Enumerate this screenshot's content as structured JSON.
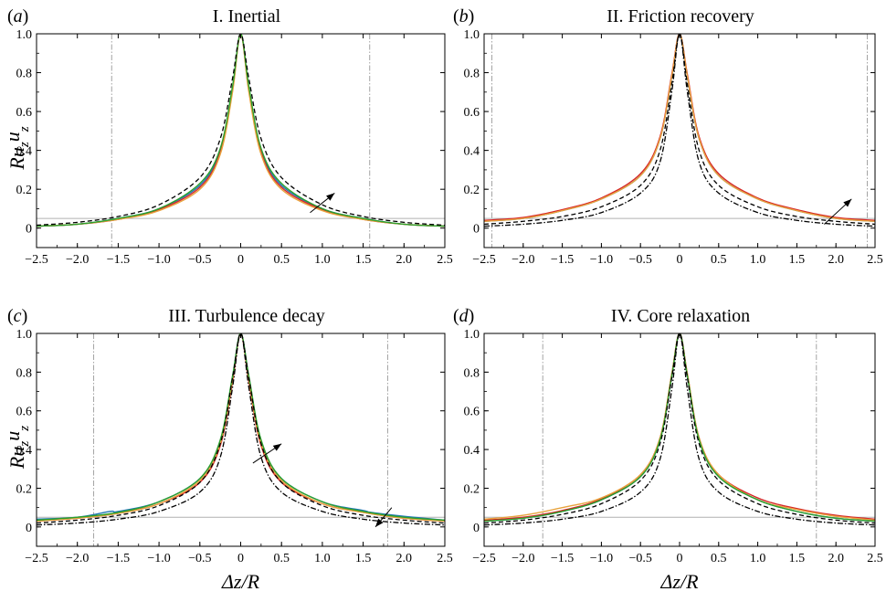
{
  "chart_data": [
    {
      "type": "line",
      "panel_label": "(a)",
      "title": "I. Inertial",
      "xlabel": "",
      "ylabel": "Ru_z u_z",
      "xlim": [
        -2.5,
        2.5
      ],
      "ylim": [
        -0.1,
        1.0
      ],
      "x_ticks": [
        "−2.5",
        "−2.0",
        "−1.5",
        "−1.0",
        "−0.5",
        "0",
        "0.5",
        "1.0",
        "1.5",
        "2.0",
        "2.5"
      ],
      "y_ticks": [
        "0",
        "0.2",
        "0.4",
        "0.6",
        "0.8",
        "1.0"
      ],
      "reference_hline": 0.05,
      "vlines": [
        -1.58,
        1.58
      ],
      "arrows": [
        {
          "from": [
            0.85,
            0.08
          ],
          "to": [
            1.15,
            0.18
          ]
        }
      ],
      "series": [
        {
          "color": "#1f77b4",
          "style": "solid",
          "x": [
            -2.5,
            -2.0,
            -1.5,
            -1.0,
            -0.5,
            -0.25,
            -0.1,
            0,
            0.1,
            0.25,
            0.5,
            1.0,
            1.5,
            2.0,
            2.5
          ],
          "y": [
            0.01,
            0.02,
            0.05,
            0.1,
            0.22,
            0.4,
            0.72,
            1.0,
            0.72,
            0.4,
            0.22,
            0.1,
            0.05,
            0.02,
            0.01
          ]
        },
        {
          "color": "#d62728",
          "style": "solid",
          "x": [
            -2.5,
            -2.0,
            -1.5,
            -1.0,
            -0.5,
            -0.25,
            -0.1,
            0,
            0.1,
            0.25,
            0.5,
            1.0,
            1.5,
            2.0,
            2.5
          ],
          "y": [
            0.01,
            0.02,
            0.045,
            0.095,
            0.21,
            0.39,
            0.71,
            1.0,
            0.71,
            0.39,
            0.21,
            0.095,
            0.045,
            0.02,
            0.01
          ]
        },
        {
          "color": "#e8a33d",
          "style": "solid",
          "x": [
            -2.5,
            -2.0,
            -1.5,
            -1.0,
            -0.5,
            -0.25,
            -0.1,
            0,
            0.1,
            0.25,
            0.5,
            1.0,
            1.5,
            2.0,
            2.5
          ],
          "y": [
            0.01,
            0.02,
            0.045,
            0.09,
            0.2,
            0.38,
            0.7,
            1.0,
            0.7,
            0.38,
            0.2,
            0.09,
            0.045,
            0.02,
            0.01
          ]
        },
        {
          "color": "#2ca02c",
          "style": "solid",
          "x": [
            -2.5,
            -2.0,
            -1.5,
            -1.0,
            -0.5,
            -0.25,
            -0.1,
            0,
            0.1,
            0.25,
            0.5,
            1.0,
            1.5,
            2.0,
            2.5
          ],
          "y": [
            0.01,
            0.02,
            0.05,
            0.1,
            0.23,
            0.41,
            0.73,
            1.0,
            0.73,
            0.41,
            0.23,
            0.1,
            0.05,
            0.02,
            0.01
          ]
        },
        {
          "color": "#000000",
          "style": "dashed",
          "x": [
            -2.5,
            -2.0,
            -1.5,
            -1.0,
            -0.5,
            -0.25,
            -0.1,
            0,
            0.1,
            0.25,
            0.5,
            1.0,
            1.5,
            2.0,
            2.5
          ],
          "y": [
            0.015,
            0.03,
            0.06,
            0.12,
            0.26,
            0.46,
            0.77,
            1.0,
            0.77,
            0.46,
            0.26,
            0.12,
            0.06,
            0.03,
            0.015
          ]
        }
      ]
    },
    {
      "type": "line",
      "panel_label": "(b)",
      "title": "II. Friction recovery",
      "xlabel": "",
      "ylabel": "",
      "xlim": [
        -2.5,
        2.5
      ],
      "ylim": [
        -0.1,
        1.0
      ],
      "x_ticks": [
        "−2.5",
        "−2.0",
        "−1.5",
        "−1.0",
        "−0.5",
        "0",
        "0.5",
        "1.0",
        "1.5",
        "2.0",
        "2.5"
      ],
      "y_ticks": [
        "0",
        "0.2",
        "0.4",
        "0.6",
        "0.8",
        "1.0"
      ],
      "reference_hline": 0.05,
      "vlines": [
        -2.4,
        2.4
      ],
      "arrows": [
        {
          "from": [
            1.85,
            0.02
          ],
          "to": [
            2.2,
            0.15
          ]
        }
      ],
      "series": [
        {
          "color": "#1f77b4",
          "style": "solid",
          "x": [
            -2.5,
            -2.0,
            -1.5,
            -1.0,
            -0.5,
            -0.25,
            -0.1,
            0,
            0.1,
            0.25,
            0.5,
            1.0,
            1.5,
            2.0,
            2.5
          ],
          "y": [
            0.035,
            0.05,
            0.09,
            0.15,
            0.27,
            0.46,
            0.78,
            1.0,
            0.78,
            0.46,
            0.27,
            0.15,
            0.09,
            0.05,
            0.035
          ]
        },
        {
          "color": "#d62728",
          "style": "solid",
          "x": [
            -2.5,
            -2.0,
            -1.5,
            -1.0,
            -0.5,
            -0.25,
            -0.1,
            0,
            0.1,
            0.25,
            0.5,
            1.0,
            1.5,
            2.0,
            2.5
          ],
          "y": [
            0.04,
            0.055,
            0.095,
            0.155,
            0.28,
            0.47,
            0.79,
            1.0,
            0.79,
            0.47,
            0.28,
            0.155,
            0.095,
            0.055,
            0.04
          ]
        },
        {
          "color": "#e8a33d",
          "style": "solid",
          "x": [
            -2.5,
            -2.0,
            -1.5,
            -1.0,
            -0.5,
            -0.25,
            -0.1,
            0,
            0.1,
            0.25,
            0.5,
            1.0,
            1.5,
            2.0,
            2.5
          ],
          "y": [
            0.035,
            0.05,
            0.09,
            0.15,
            0.27,
            0.46,
            0.78,
            1.0,
            0.78,
            0.46,
            0.27,
            0.15,
            0.09,
            0.05,
            0.035
          ]
        },
        {
          "color": "#000000",
          "style": "dashed",
          "x": [
            -2.5,
            -2.0,
            -1.5,
            -1.0,
            -0.5,
            -0.25,
            -0.1,
            0,
            0.1,
            0.25,
            0.5,
            1.0,
            1.5,
            2.0,
            2.5
          ],
          "y": [
            0.02,
            0.035,
            0.06,
            0.11,
            0.22,
            0.4,
            0.74,
            1.0,
            0.74,
            0.4,
            0.22,
            0.11,
            0.06,
            0.035,
            0.02
          ]
        },
        {
          "color": "#000000",
          "style": "dashdot",
          "x": [
            -2.5,
            -2.0,
            -1.5,
            -1.0,
            -0.5,
            -0.25,
            -0.1,
            0,
            0.1,
            0.25,
            0.5,
            1.0,
            1.5,
            2.0,
            2.5
          ],
          "y": [
            0.01,
            0.02,
            0.04,
            0.08,
            0.18,
            0.34,
            0.7,
            1.0,
            0.7,
            0.34,
            0.18,
            0.08,
            0.04,
            0.02,
            0.01
          ]
        }
      ]
    },
    {
      "type": "line",
      "panel_label": "(c)",
      "title": "III. Turbulence decay",
      "xlabel": "Δz/R",
      "ylabel": "Ru_z u_z",
      "xlim": [
        -2.5,
        2.5
      ],
      "ylim": [
        -0.1,
        1.0
      ],
      "x_ticks": [
        "−2.5",
        "−2.0",
        "−1.5",
        "−1.0",
        "−0.5",
        "0",
        "0.5",
        "1.0",
        "1.5",
        "2.0",
        "2.5"
      ],
      "y_ticks": [
        "0",
        "0.2",
        "0.4",
        "0.6",
        "0.8",
        "1.0"
      ],
      "reference_hline": 0.05,
      "vlines": [
        -1.8,
        1.8
      ],
      "arrows": [
        {
          "from": [
            0.15,
            0.33
          ],
          "to": [
            0.5,
            0.43
          ]
        },
        {
          "from": [
            1.85,
            0.1
          ],
          "to": [
            1.65,
            0.0
          ]
        }
      ],
      "series": [
        {
          "color": "#1f77b4",
          "style": "solid",
          "x": [
            -2.5,
            -2.0,
            -1.6,
            -1.5,
            -1.0,
            -0.5,
            -0.25,
            -0.1,
            0,
            0.1,
            0.25,
            0.5,
            1.0,
            1.5,
            1.6,
            2.0,
            2.5
          ],
          "y": [
            0.04,
            0.05,
            0.08,
            0.08,
            0.13,
            0.25,
            0.44,
            0.77,
            1.0,
            0.77,
            0.44,
            0.25,
            0.13,
            0.085,
            0.075,
            0.055,
            0.035
          ]
        },
        {
          "color": "#d62728",
          "style": "solid",
          "x": [
            -2.5,
            -2.0,
            -1.5,
            -1.0,
            -0.5,
            -0.25,
            -0.1,
            0,
            0.1,
            0.25,
            0.5,
            1.0,
            1.5,
            2.0,
            2.5
          ],
          "y": [
            0.03,
            0.045,
            0.07,
            0.12,
            0.23,
            0.42,
            0.75,
            1.0,
            0.75,
            0.42,
            0.23,
            0.12,
            0.075,
            0.045,
            0.03
          ]
        },
        {
          "color": "#e8a33d",
          "style": "solid",
          "x": [
            -2.5,
            -2.0,
            -1.5,
            -1.0,
            -0.5,
            -0.25,
            -0.1,
            0,
            0.1,
            0.25,
            0.5,
            1.0,
            1.5,
            2.0,
            2.5
          ],
          "y": [
            0.03,
            0.045,
            0.07,
            0.12,
            0.24,
            0.43,
            0.76,
            1.0,
            0.76,
            0.43,
            0.24,
            0.12,
            0.075,
            0.045,
            0.03
          ]
        },
        {
          "color": "#2ca02c",
          "style": "solid",
          "x": [
            -2.5,
            -2.0,
            -1.5,
            -1.0,
            -0.5,
            -0.25,
            -0.1,
            0,
            0.1,
            0.25,
            0.5,
            1.0,
            1.5,
            2.0,
            2.5
          ],
          "y": [
            0.035,
            0.05,
            0.075,
            0.13,
            0.25,
            0.45,
            0.78,
            1.0,
            0.78,
            0.45,
            0.25,
            0.13,
            0.08,
            0.05,
            0.035
          ]
        },
        {
          "color": "#000000",
          "style": "dashed",
          "x": [
            -2.5,
            -2.0,
            -1.5,
            -1.0,
            -0.5,
            -0.25,
            -0.1,
            0,
            0.1,
            0.25,
            0.5,
            1.0,
            1.5,
            2.0,
            2.5
          ],
          "y": [
            0.02,
            0.035,
            0.06,
            0.11,
            0.23,
            0.43,
            0.77,
            1.0,
            0.77,
            0.43,
            0.23,
            0.11,
            0.06,
            0.035,
            0.02
          ]
        },
        {
          "color": "#000000",
          "style": "dashdot",
          "x": [
            -2.5,
            -2.0,
            -1.5,
            -1.0,
            -0.5,
            -0.25,
            -0.1,
            0,
            0.1,
            0.25,
            0.5,
            1.0,
            1.5,
            2.0,
            2.5
          ],
          "y": [
            0.01,
            0.02,
            0.04,
            0.08,
            0.18,
            0.36,
            0.72,
            1.0,
            0.72,
            0.36,
            0.18,
            0.08,
            0.04,
            0.02,
            0.01
          ]
        }
      ]
    },
    {
      "type": "line",
      "panel_label": "(d)",
      "title": "IV. Core relaxation",
      "xlabel": "Δz/R",
      "ylabel": "",
      "xlim": [
        -2.5,
        2.5
      ],
      "ylim": [
        -0.1,
        1.0
      ],
      "x_ticks": [
        "−2.5",
        "−2.0",
        "−1.5",
        "−1.0",
        "−0.5",
        "0",
        "0.5",
        "1.0",
        "1.5",
        "2.0",
        "2.5"
      ],
      "y_ticks": [
        "0",
        "0.2",
        "0.4",
        "0.6",
        "0.8",
        "1.0"
      ],
      "reference_hline": 0.05,
      "vlines": [
        -1.75,
        1.75
      ],
      "arrows": [],
      "series": [
        {
          "color": "#1f77b4",
          "style": "solid",
          "x": [
            -2.5,
            -2.0,
            -1.5,
            -1.0,
            -0.5,
            -0.25,
            -0.1,
            0,
            0.1,
            0.25,
            0.5,
            1.0,
            1.5,
            2.0,
            2.5
          ],
          "y": [
            0.03,
            0.045,
            0.08,
            0.14,
            0.26,
            0.45,
            0.78,
            1.0,
            0.78,
            0.45,
            0.26,
            0.14,
            0.08,
            0.045,
            0.03
          ]
        },
        {
          "color": "#d62728",
          "style": "solid",
          "x": [
            -2.5,
            -2.0,
            -1.5,
            -1.0,
            -0.5,
            -0.25,
            -0.1,
            0,
            0.1,
            0.25,
            0.5,
            1.0,
            1.5,
            2.0,
            2.5
          ],
          "y": [
            0.035,
            0.05,
            0.085,
            0.145,
            0.27,
            0.46,
            0.79,
            1.0,
            0.79,
            0.46,
            0.27,
            0.15,
            0.095,
            0.06,
            0.04
          ]
        },
        {
          "color": "#e8a33d",
          "style": "solid",
          "x": [
            -2.5,
            -2.0,
            -1.5,
            -1.0,
            -0.5,
            -0.25,
            -0.1,
            0,
            0.1,
            0.25,
            0.5,
            1.0,
            1.5,
            2.0,
            2.5
          ],
          "y": [
            0.04,
            0.06,
            0.1,
            0.15,
            0.27,
            0.46,
            0.79,
            1.0,
            0.79,
            0.46,
            0.27,
            0.14,
            0.09,
            0.055,
            0.035
          ]
        },
        {
          "color": "#2ca02c",
          "style": "solid",
          "x": [
            -2.5,
            -2.0,
            -1.5,
            -1.0,
            -0.5,
            -0.25,
            -0.1,
            0,
            0.1,
            0.25,
            0.5,
            1.0,
            1.5,
            2.0,
            2.5
          ],
          "y": [
            0.03,
            0.045,
            0.08,
            0.14,
            0.26,
            0.45,
            0.78,
            1.0,
            0.78,
            0.45,
            0.26,
            0.14,
            0.08,
            0.045,
            0.03
          ]
        },
        {
          "color": "#000000",
          "style": "dashed",
          "x": [
            -2.5,
            -2.0,
            -1.5,
            -1.0,
            -0.5,
            -0.25,
            -0.1,
            0,
            0.1,
            0.25,
            0.5,
            1.0,
            1.5,
            2.0,
            2.5
          ],
          "y": [
            0.02,
            0.035,
            0.065,
            0.12,
            0.24,
            0.43,
            0.77,
            1.0,
            0.77,
            0.43,
            0.24,
            0.12,
            0.065,
            0.035,
            0.02
          ]
        },
        {
          "color": "#000000",
          "style": "dashdot",
          "x": [
            -2.5,
            -2.0,
            -1.5,
            -1.0,
            -0.5,
            -0.25,
            -0.1,
            0,
            0.1,
            0.25,
            0.5,
            1.0,
            1.5,
            2.0,
            2.5
          ],
          "y": [
            0.01,
            0.02,
            0.04,
            0.08,
            0.18,
            0.35,
            0.71,
            1.0,
            0.71,
            0.35,
            0.18,
            0.08,
            0.04,
            0.02,
            0.01
          ]
        }
      ]
    }
  ],
  "colors": {
    "reference_line": "#b0b0b0",
    "vline": "#999999",
    "axis": "#000000"
  }
}
